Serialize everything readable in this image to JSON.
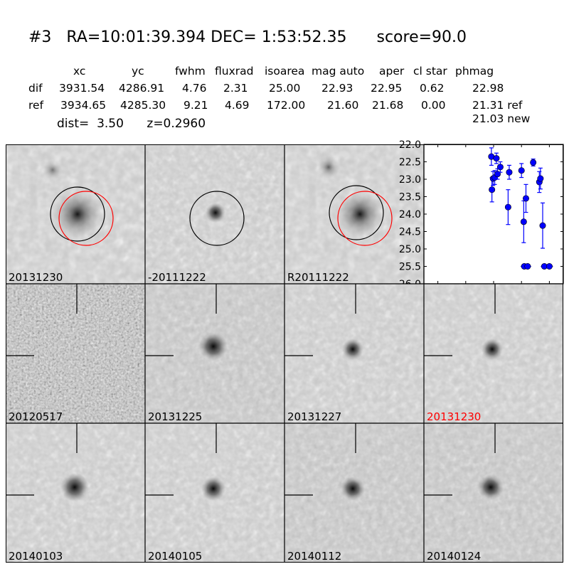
{
  "header": {
    "candidate": "#3",
    "ra": "RA=10:01:39.394",
    "dec": "DEC= 1:53:52.35",
    "score": "score=90.0"
  },
  "photometry": {
    "columns": [
      "xc",
      "yc",
      "fwhm",
      "fluxrad",
      "isoarea",
      "mag auto",
      "aper",
      "cl star",
      "phmag"
    ],
    "rows": [
      {
        "name": "dif",
        "values": [
          "3931.54",
          "4286.91",
          "4.76",
          "2.31",
          "25.00",
          "22.93",
          "22.95",
          "0.62",
          "22.98"
        ]
      },
      {
        "name": "ref",
        "values": [
          "3934.65",
          "4285.30",
          "9.21",
          "4.69",
          "172.00",
          "21.60",
          "21.68",
          "0.00",
          "21.31 ref"
        ]
      }
    ],
    "new_mag": "21.03 new"
  },
  "summary": {
    "dist": "dist=  3.50",
    "z": "z=0.2960"
  },
  "stamps": {
    "row1": [
      {
        "label": "20131230",
        "rings": [
          "black",
          "red"
        ]
      },
      {
        "label": "-20111222",
        "rings": [
          "black"
        ]
      },
      {
        "label": "R20111222",
        "rings": [
          "black",
          "red"
        ]
      }
    ],
    "row2": [
      {
        "label": "20120517",
        "label_color": "#000000"
      },
      {
        "label": "20131225",
        "label_color": "#000000"
      },
      {
        "label": "20131227",
        "label_color": "#000000"
      },
      {
        "label": "20131230",
        "label_color": "#ff0000"
      }
    ],
    "row3": [
      {
        "label": "20140103"
      },
      {
        "label": "20140105"
      },
      {
        "label": "20140112"
      },
      {
        "label": "20140124"
      }
    ]
  },
  "chart_data": {
    "type": "scatter",
    "title": "",
    "xlabel": "",
    "ylabel": "",
    "xlim": [
      -125,
      125
    ],
    "ylim": [
      26.0,
      22.0
    ],
    "y_inverted": true,
    "xticks": [
      -100,
      -50,
      0,
      50,
      100
    ],
    "yticks": [
      22.0,
      22.5,
      23.0,
      23.5,
      24.0,
      24.5,
      25.0,
      25.5,
      26.0
    ],
    "marker_color": "#0000ff",
    "points": [
      {
        "x": -4,
        "y": 22.35,
        "err": 0.25
      },
      {
        "x": -3,
        "y": 23.3,
        "err": 0.35
      },
      {
        "x": -1,
        "y": 22.98,
        "err": 0.2
      },
      {
        "x": 2,
        "y": 22.95,
        "err": 0.2
      },
      {
        "x": 5,
        "y": 22.4,
        "err": 0.15
      },
      {
        "x": 7,
        "y": 22.85,
        "err": 0.15
      },
      {
        "x": 12,
        "y": 22.65,
        "err": 0.15
      },
      {
        "x": 26,
        "y": 23.8,
        "err": 0.5
      },
      {
        "x": 28,
        "y": 22.8,
        "err": 0.2
      },
      {
        "x": 50,
        "y": 22.75,
        "err": 0.2
      },
      {
        "x": 54,
        "y": 24.22,
        "err": 0.6
      },
      {
        "x": 58,
        "y": 23.55,
        "err": 0.4
      },
      {
        "x": 55,
        "y": 25.5,
        "err": 0.0
      },
      {
        "x": 61,
        "y": 25.5,
        "err": 0.0
      },
      {
        "x": 71,
        "y": 22.52,
        "err": 0.1
      },
      {
        "x": 82,
        "y": 23.08,
        "err": 0.3
      },
      {
        "x": 84,
        "y": 22.98,
        "err": 0.3
      },
      {
        "x": 88,
        "y": 24.33,
        "err": 0.65
      },
      {
        "x": 91,
        "y": 25.5,
        "err": 0.0
      },
      {
        "x": 100,
        "y": 25.5,
        "err": 0.0
      }
    ]
  }
}
